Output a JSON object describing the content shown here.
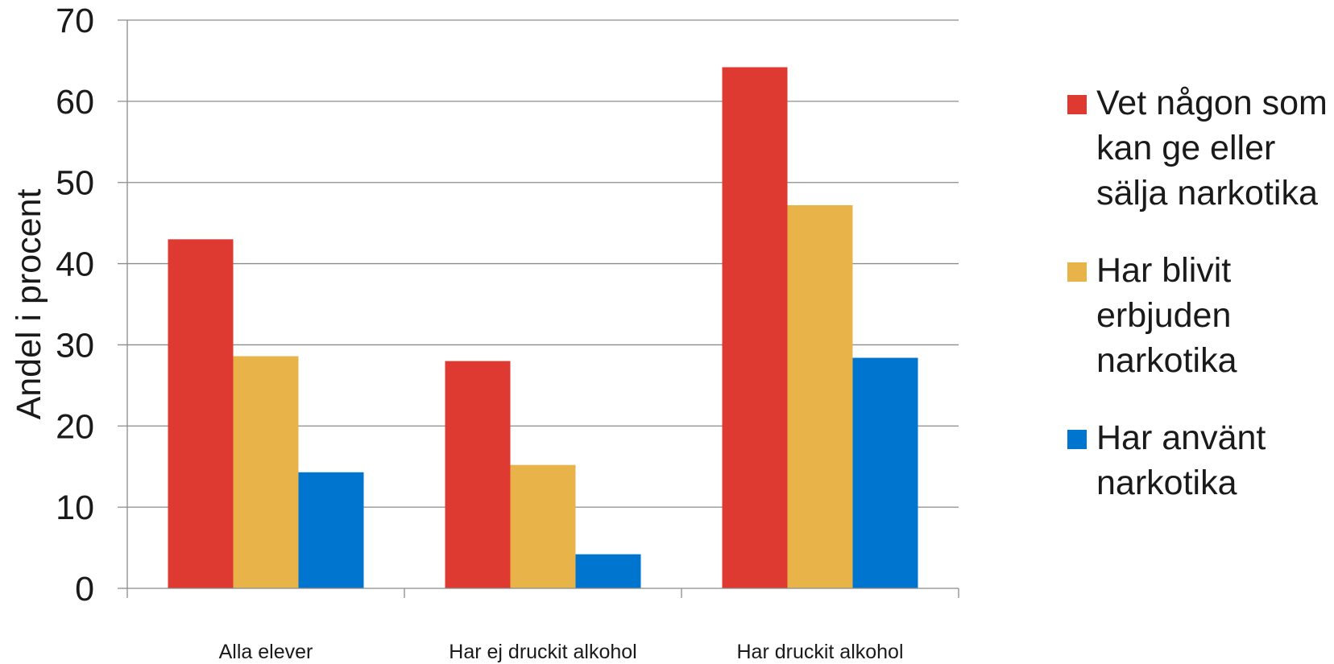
{
  "chart_data": {
    "type": "bar",
    "title": "",
    "xlabel": "",
    "ylabel": "Andel i procent",
    "ylim": [
      0,
      70
    ],
    "yticks": [
      0,
      10,
      20,
      30,
      40,
      50,
      60,
      70
    ],
    "grid": true,
    "legend_position": "right",
    "categories": [
      "Alla elever",
      "Har ej druckit alkohol",
      "Har druckit alkohol"
    ],
    "series": [
      {
        "name": "Vet någon som kan ge eller sälja narkotika",
        "color": "#DE3A32",
        "values": [
          43.0,
          28.0,
          64.2
        ]
      },
      {
        "name": "Har blivit erbjuden narkotika",
        "color": "#E8B44A",
        "values": [
          28.6,
          15.2,
          47.2
        ]
      },
      {
        "name": "Har använt narkotika",
        "color": "#0075CF",
        "values": [
          14.3,
          4.2,
          28.4
        ]
      }
    ]
  }
}
